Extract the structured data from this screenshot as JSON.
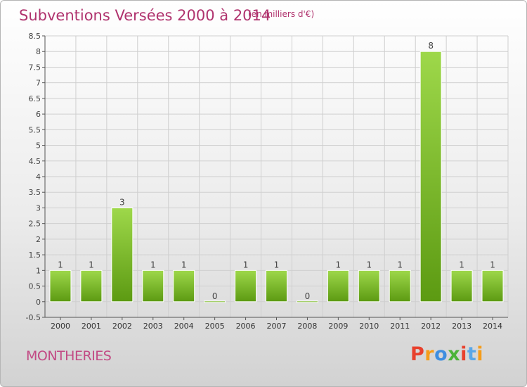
{
  "header": {
    "title": "Subventions Versées 2000 à 2014",
    "unit": "(en milliers d'€)"
  },
  "footer": {
    "commune": "MONTHERIES",
    "brand": "Proxiti",
    "brand_colors": [
      "#e8412d",
      "#f59d1a",
      "#3d8ee0",
      "#4bb33a",
      "#e8412d",
      "#5aa7e8",
      "#f59d1a"
    ]
  },
  "colors": {
    "title": "#b0336e",
    "bar_top": "#9ed84a",
    "bar_bottom": "#5c9a12",
    "grid": "#cfcfcf",
    "axis": "#555555"
  },
  "chart_data": {
    "type": "bar",
    "title": "Subventions Versées 2000 à 2014",
    "subtitle": "(en milliers d'€)",
    "categories": [
      "2000",
      "2001",
      "2002",
      "2003",
      "2004",
      "2005",
      "2006",
      "2007",
      "2008",
      "2009",
      "2010",
      "2011",
      "2012",
      "2013",
      "2014"
    ],
    "values": [
      1,
      1,
      3,
      1,
      1,
      0,
      1,
      1,
      0,
      1,
      1,
      1,
      8,
      1,
      1
    ],
    "data_labels": [
      "1",
      "1",
      "3",
      "1",
      "1",
      "0",
      "1",
      "1",
      "0",
      "1",
      "1",
      "1",
      "8",
      "1",
      "1"
    ],
    "ylim": [
      -0.5,
      8.5
    ],
    "yticks": [
      -0.5,
      0,
      0.5,
      1,
      1.5,
      2,
      2.5,
      3,
      3.5,
      4,
      4.5,
      5,
      5.5,
      6,
      6.5,
      7,
      7.5,
      8,
      8.5
    ],
    "ytick_labels": [
      "-0.5",
      "0",
      "0.5",
      "1",
      "1.5",
      "2",
      "2.5",
      "3",
      "3.5",
      "4",
      "4.5",
      "5",
      "5.5",
      "6",
      "6.5",
      "7",
      "7.5",
      "8",
      "8.5"
    ],
    "xlabel": "",
    "ylabel": "",
    "grid": true,
    "legend": "none"
  }
}
